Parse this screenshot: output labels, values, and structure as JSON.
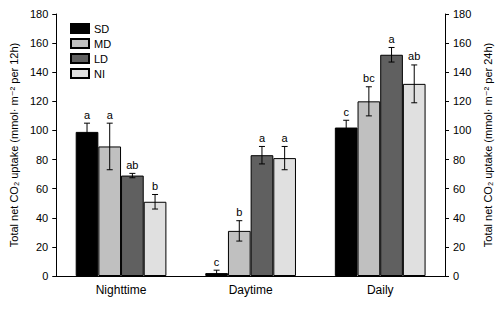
{
  "chart_data": {
    "type": "bar",
    "categories": [
      "Nighttime",
      "Daytime",
      "Daily"
    ],
    "series": [
      {
        "name": "SD",
        "color": "#000000",
        "values": [
          99,
          2,
          102
        ],
        "errors": [
          6,
          2,
          5
        ],
        "letters": [
          "a",
          "c",
          "c"
        ]
      },
      {
        "name": "MD",
        "color": "#c0c0c0",
        "values": [
          89,
          31,
          120
        ],
        "errors": [
          16,
          7,
          10
        ],
        "letters": [
          "a",
          "b",
          "bc"
        ]
      },
      {
        "name": "LD",
        "color": "#606060",
        "values": [
          69,
          83,
          152
        ],
        "errors": [
          1.5,
          6,
          5
        ],
        "letters": [
          "ab",
          "a",
          "a"
        ]
      },
      {
        "name": "NI",
        "color": "#e0e0e0",
        "values": [
          51,
          81,
          132
        ],
        "errors": [
          5,
          8,
          13
        ],
        "letters": [
          "b",
          "a",
          "ab"
        ]
      }
    ],
    "ylabel": "Total net CO₂ uptake (mmol· m⁻² per 12h)",
    "y2label": "Total net CO₂ uptake (mmol· m⁻² per 24h)",
    "ylim": [
      0,
      180
    ],
    "yticks": [
      0,
      20,
      40,
      60,
      80,
      100,
      120,
      140,
      160,
      180
    ],
    "y2lim": [
      0,
      180
    ],
    "y2ticks": [
      0,
      20,
      40,
      60,
      80,
      100,
      120,
      140,
      160,
      180
    ],
    "grid": false,
    "legend": "upper left"
  }
}
